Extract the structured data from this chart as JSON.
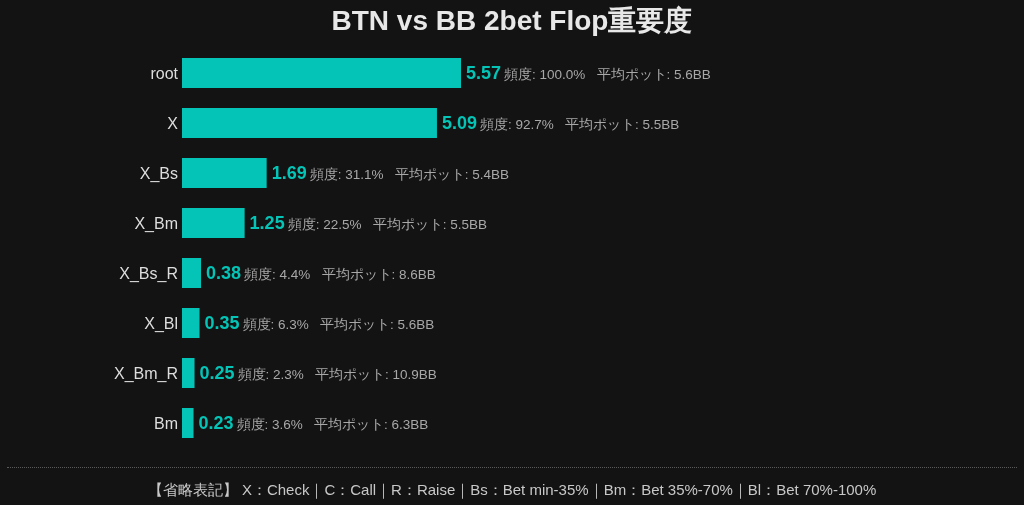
{
  "chart_data": {
    "type": "bar",
    "orientation": "horizontal",
    "title": "BTN vs BB 2bet Flop重要度",
    "categories": [
      "root",
      "X",
      "X_Bs",
      "X_Bm",
      "X_Bs_R",
      "X_Bl",
      "X_Bm_R",
      "Bm"
    ],
    "values": [
      5.57,
      5.09,
      1.69,
      1.25,
      0.38,
      0.35,
      0.25,
      0.23
    ],
    "color": "#03c4b6",
    "tick_labels": "y",
    "data_labels": true,
    "annotations": [
      "頻度: 100.0%   平均ポット: 5.6BB",
      "頻度: 92.7%   平均ポット: 5.5BB",
      "頻度: 31.1%   平均ポット: 5.4BB",
      "頻度: 22.5%   平均ポット: 5.5BB",
      "頻度: 4.4%   平均ポット: 8.6BB",
      "頻度: 6.3%   平均ポット: 5.6BB",
      "頻度: 2.3%   平均ポット: 10.9BB",
      "頻度: 3.6%   平均ポット: 6.3BB",
      "【省略表記】 X：Check｜C：Call｜R：Raise｜Bs：Bet min-35%｜Bm：Bet 35%-70%｜Bl：Bet 70%-100%"
    ]
  }
}
